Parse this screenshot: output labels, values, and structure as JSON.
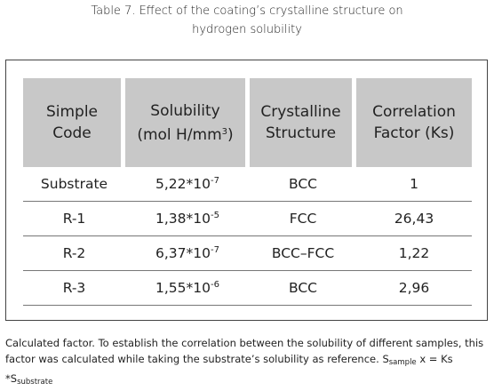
{
  "header": {
    "title_lines": [
      "Table 7. Effect of the coating’s crystalline structure on",
      "hydrogen solubility"
    ]
  },
  "table": {
    "columns": [
      {
        "lines": [
          "Simple",
          "Code"
        ]
      },
      {
        "lines": [
          "Solubility"
        ],
        "unit_base": "(mol H/mm",
        "unit_sup": "3",
        "unit_end": ")"
      },
      {
        "lines": [
          "Crystalline",
          "Structure"
        ]
      },
      {
        "lines": [
          "Correlation",
          "Factor (Ks)"
        ]
      }
    ],
    "rows": [
      {
        "code": "Substrate",
        "solubility": {
          "base": "5,22*10",
          "exp": "-7"
        },
        "structure": "BCC",
        "factor": "1"
      },
      {
        "code": "R-1",
        "solubility": {
          "base": "1,38*10",
          "exp": "-5"
        },
        "structure": "FCC",
        "factor": "26,43"
      },
      {
        "code": "R-2",
        "solubility": {
          "base": "6,37*10",
          "exp": "-7"
        },
        "structure": "BCC–FCC",
        "factor": "1,22"
      },
      {
        "code": "R-3",
        "solubility": {
          "base": "1,55*10",
          "exp": "-6"
        },
        "structure": "BCC",
        "factor": "2,96"
      }
    ]
  },
  "footnote": {
    "text": "Calculated factor. To establish the correlation between the solubility of different samples, this factor was calculated while taking the substrate’s solubility as reference.",
    "s1": "S",
    "s1_sub": "sample",
    "mid": "x = Ks *S",
    "s2_sub": "substrate"
  }
}
